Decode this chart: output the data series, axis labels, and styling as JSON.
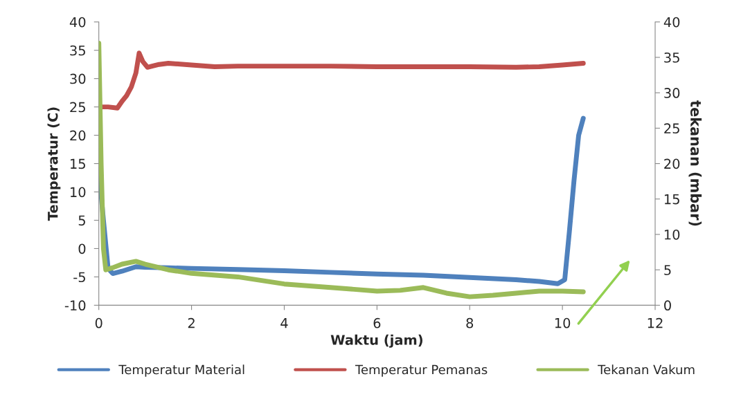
{
  "chart_data": {
    "type": "line",
    "xlabel": "Waktu (jam)",
    "ylabel": "Temperatur (C)",
    "y2label": "tekanan (mbar)",
    "xlim": [
      0,
      12
    ],
    "xticks": [
      0,
      2,
      4,
      6,
      8,
      10,
      12
    ],
    "ylim": [
      -10,
      40
    ],
    "yticks": [
      -10,
      -5,
      0,
      5,
      10,
      15,
      20,
      25,
      30,
      35,
      40
    ],
    "y2lim": [
      0,
      40
    ],
    "y2ticks": [
      0,
      5,
      10,
      15,
      20,
      25,
      30,
      35,
      40
    ],
    "grid": false,
    "legend": "bottom",
    "marker": "none",
    "line_style": "solid",
    "series": [
      {
        "name": "Temperatur Material",
        "color": "#4f81bd",
        "x": [
          0,
          0.1,
          0.2,
          0.3,
          0.5,
          0.8,
          1.0,
          1.5,
          2,
          3,
          4,
          5,
          6,
          7,
          8,
          9,
          9.5,
          9.9,
          10.05,
          10.15,
          10.25,
          10.35,
          10.45
        ],
        "values": [
          14,
          5,
          -3.5,
          -4.4,
          -4,
          -3.2,
          -3.3,
          -3.4,
          -3.5,
          -3.7,
          -3.9,
          -4.2,
          -4.5,
          -4.7,
          -5.1,
          -5.5,
          -5.8,
          -6.2,
          -5.5,
          3,
          12,
          20,
          23
        ]
      },
      {
        "name": "Temperatur Pemanas",
        "color": "#c0504d",
        "x": [
          0,
          0.2,
          0.4,
          0.5,
          0.6,
          0.7,
          0.8,
          0.87,
          0.95,
          1.05,
          1.15,
          1.3,
          1.5,
          2,
          2.5,
          3,
          4,
          5,
          6,
          7,
          8,
          9,
          9.5,
          10,
          10.45
        ],
        "values": [
          25,
          25,
          24.8,
          26,
          27,
          28.5,
          31,
          34.5,
          33,
          32,
          32.2,
          32.5,
          32.7,
          32.4,
          32.1,
          32.2,
          32.2,
          32.2,
          32.1,
          32.1,
          32.1,
          32,
          32.1,
          32.4,
          32.7
        ]
      },
      {
        "name": "Tekanan Vakum",
        "color": "#9bbb59",
        "axis": "y2",
        "x": [
          0,
          0.05,
          0.1,
          0.15,
          0.3,
          0.5,
          0.8,
          1.0,
          1.5,
          2,
          3,
          4,
          5,
          6,
          6.5,
          7,
          7.5,
          8,
          8.5,
          9,
          9.5,
          10,
          10.45
        ],
        "values": [
          37,
          20,
          8,
          5,
          5.3,
          5.8,
          6.2,
          5.8,
          5.0,
          4.5,
          4.0,
          3.0,
          2.5,
          2.0,
          2.1,
          2.5,
          1.7,
          1.2,
          1.4,
          1.7,
          2.0,
          2.0,
          1.9
        ]
      }
    ]
  }
}
